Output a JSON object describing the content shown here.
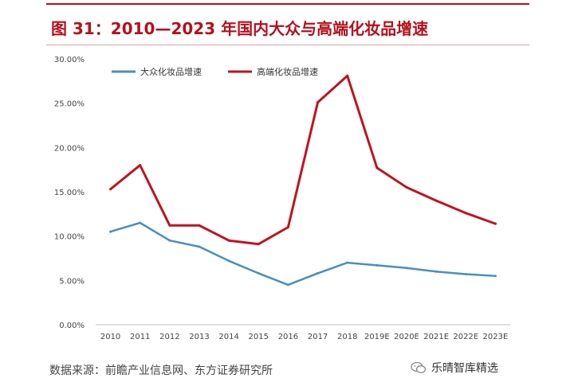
{
  "title": "图 31：2010—2023 年国内大众与高端化妆品增速",
  "source": "数据来源：前瞻产业信息网、东方证券研究所",
  "watermark": "乐晴智库精选",
  "colors": {
    "mass": "#4a8fbf",
    "premium": "#c0141f",
    "title": "#b3121c"
  },
  "chart_data": {
    "type": "line",
    "title": "",
    "xlabel": "",
    "ylabel": "",
    "categories": [
      "2010",
      "2011",
      "2012",
      "2013",
      "2014",
      "2015",
      "2016",
      "2017",
      "2018",
      "2019E",
      "2020E",
      "2021E",
      "2022E",
      "2023E"
    ],
    "y_ticks": [
      "0.00%",
      "5.00%",
      "10.00%",
      "15.00%",
      "20.00%",
      "25.00%",
      "30.00%"
    ],
    "ylim": [
      0,
      30
    ],
    "grid": false,
    "legend_position": "top-left",
    "series": [
      {
        "name": "大众化妆品增速",
        "color": "#4a8fbf",
        "values": [
          10.5,
          11.5,
          9.5,
          8.8,
          7.2,
          5.8,
          4.5,
          5.8,
          7.0,
          6.7,
          6.4,
          6.0,
          5.7,
          5.5
        ]
      },
      {
        "name": "高端化妆品增速",
        "color": "#c0141f",
        "values": [
          15.3,
          18.0,
          11.2,
          11.2,
          9.5,
          9.1,
          11.0,
          25.1,
          28.1,
          17.7,
          15.5,
          14.0,
          12.6,
          11.4
        ]
      }
    ]
  }
}
